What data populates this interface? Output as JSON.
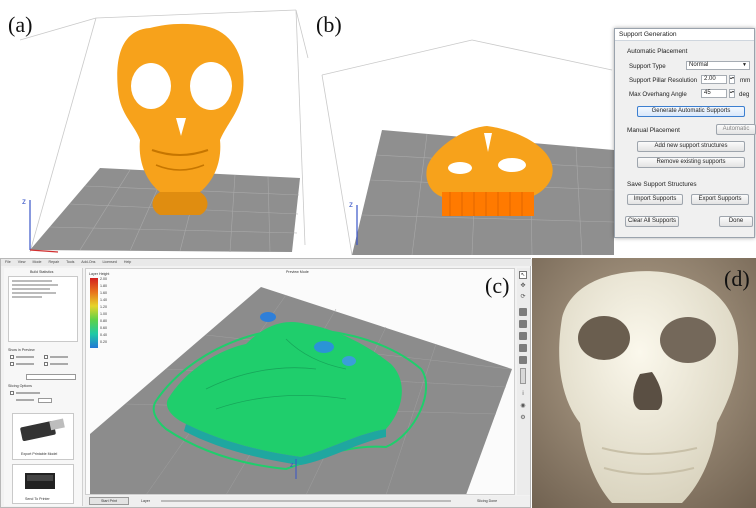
{
  "panel_labels": {
    "a": "(a)",
    "b": "(b)",
    "c": "(c)",
    "d": "(d)"
  },
  "dialog": {
    "title": "Support Generation",
    "automatic_placement": "Automatic Placement",
    "support_type_label": "Support Type",
    "support_type_value": "Normal",
    "pillar_resolution_label": "Support Pillar Resolution",
    "pillar_resolution_value": "2.00",
    "pillar_resolution_unit": "mm",
    "max_overhang_label": "Max Overhang Angle",
    "max_overhang_value": "45",
    "max_overhang_unit": "deg",
    "generate_button": "Generate Automatic Supports",
    "manual_placement": "Manual Placement",
    "automatic_button": "Automatic",
    "add_button": "Add new support structures",
    "remove_button": "Remove existing supports",
    "save_structures": "Save Support Structures",
    "import_button": "Import Supports",
    "export_button": "Export Supports",
    "clear_button": "Clear All Supports",
    "done_button": "Done"
  },
  "app": {
    "menu": [
      "File",
      "View",
      "Mode",
      "Repair",
      "Tools",
      "Add-Ons",
      "Licensed",
      "Help"
    ],
    "build_statistics_title": "Build Statistics",
    "viewport_title": "Preview Mode",
    "legend_title": "Layer Height",
    "legend_values": [
      "2.00",
      "1.80",
      "1.60",
      "1.40",
      "1.20",
      "1.00",
      "0.80",
      "0.60",
      "0.40",
      "0.20"
    ],
    "bottom_button": "Start Print",
    "bottom_label": "Layer",
    "bottom_right": "Slicing Done",
    "left_section_1": "Show in Preview",
    "left_section_2": "Slicing Options",
    "left_button_1": "Export Printable Model",
    "left_button_2": "Send To Printer"
  },
  "colors": {
    "model_orange": "#f7a21b",
    "support_orange": "#ff7a00",
    "grid_gray": "#8e8e8e",
    "mesh_green": "#1fce6c",
    "dialog_bg": "#f0f0f0"
  }
}
